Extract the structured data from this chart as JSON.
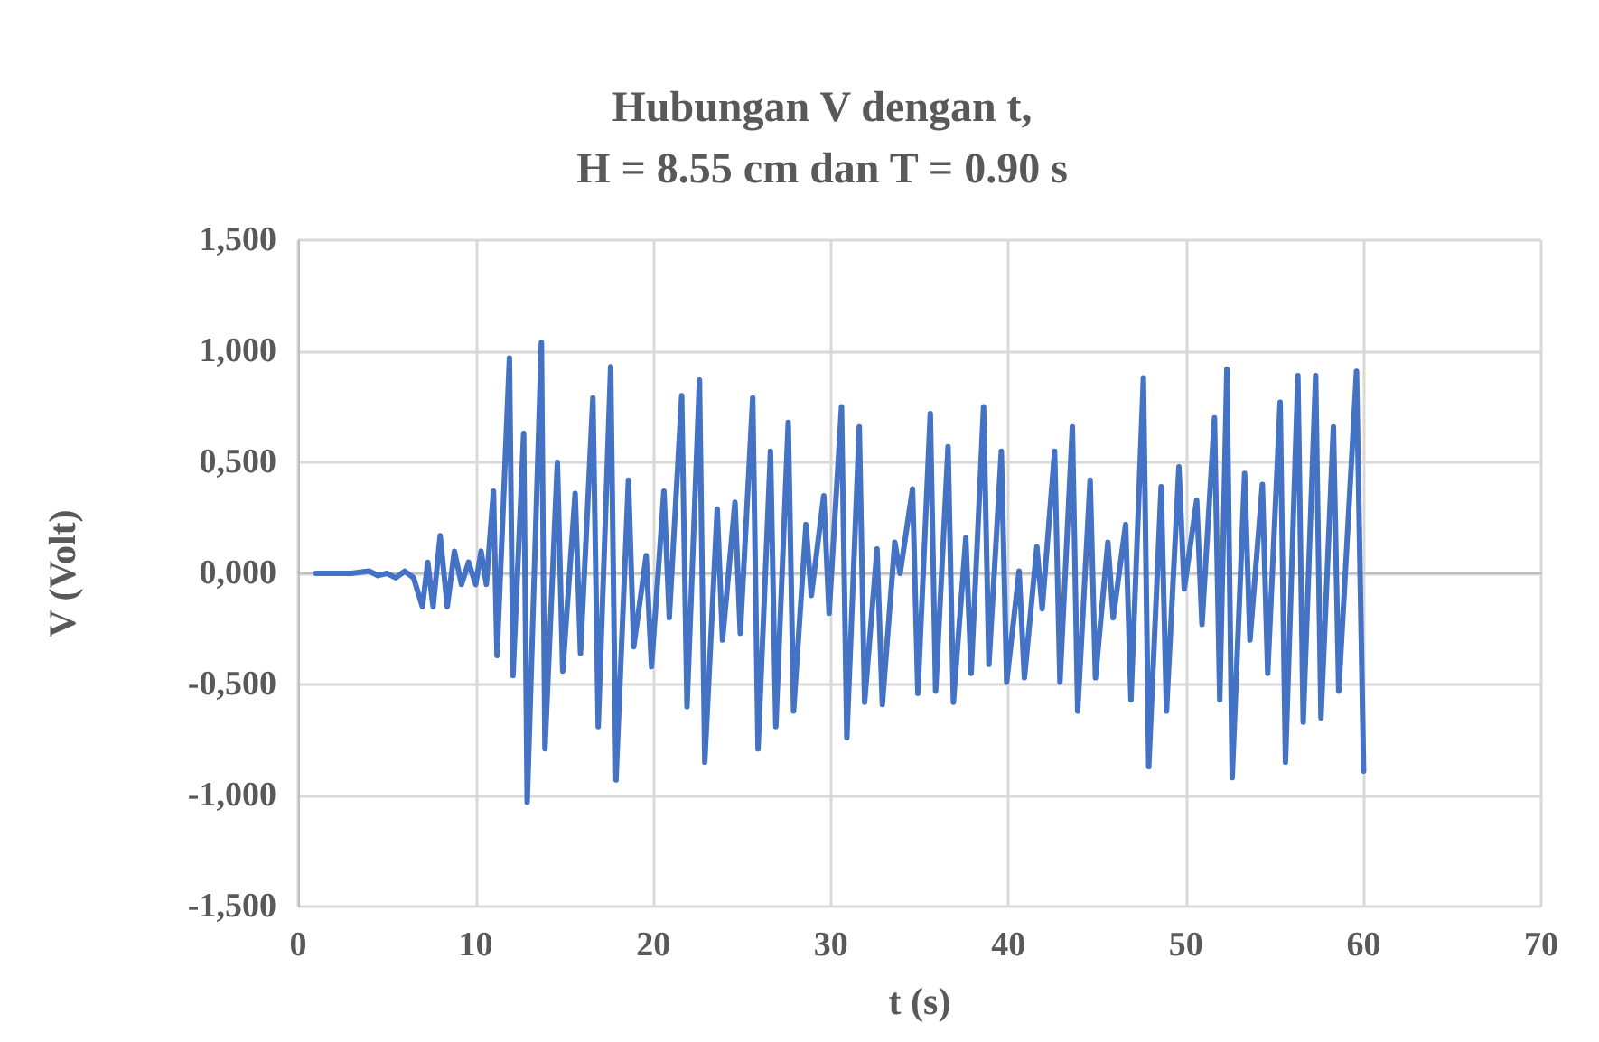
{
  "chart_data": {
    "type": "line",
    "title": "Hubungan V dengan t,\nH = 8.55 cm dan T = 0.90 s",
    "xlabel": "t (s)",
    "ylabel": "V (Volt)",
    "xlim": [
      0,
      70
    ],
    "xticks": [
      0,
      10,
      20,
      30,
      40,
      50,
      60,
      70
    ],
    "ylim": [
      -1.5,
      1.5
    ],
    "yticks": [
      {
        "value": -1.5,
        "label": "-1,500"
      },
      {
        "value": -1,
        "label": "-1,000"
      },
      {
        "value": -0.5,
        "label": "-0,500"
      },
      {
        "value": 0,
        "label": "0,000"
      },
      {
        "value": 0.5,
        "label": "0,500"
      },
      {
        "value": 1,
        "label": "1,000"
      },
      {
        "value": 1.5,
        "label": "1,500"
      }
    ],
    "grid": true,
    "marker": "none",
    "line_style": "solid",
    "series": [
      {
        "color": "#4472c4",
        "x": [
          1,
          2,
          3,
          4,
          4.5,
          5,
          5.5,
          6,
          6.5,
          7,
          7.3,
          7.6,
          8,
          8.4,
          8.8,
          9.2,
          9.6,
          10,
          10.3,
          10.6,
          11,
          11.2,
          11.9,
          12.1,
          12.7,
          12.9,
          13.7,
          13.9,
          14.6,
          14.9,
          15.6,
          15.9,
          16.6,
          16.9,
          17.6,
          17.9,
          18.6,
          18.9,
          19.6,
          19.9,
          20.6,
          20.9,
          21.6,
          21.9,
          22.6,
          22.9,
          23.6,
          23.9,
          24.6,
          24.9,
          25.6,
          25.9,
          26.6,
          26.9,
          27.6,
          27.9,
          28.6,
          28.9,
          29.6,
          29.9,
          30.6,
          30.9,
          31.6,
          31.9,
          32.6,
          32.9,
          33.6,
          33.9,
          34.6,
          34.9,
          35.6,
          35.9,
          36.6,
          36.9,
          37.6,
          37.9,
          38.6,
          38.9,
          39.6,
          39.9,
          40.6,
          40.9,
          41.6,
          41.9,
          42.6,
          42.9,
          43.6,
          43.9,
          44.6,
          44.9,
          45.6,
          45.9,
          46.6,
          46.9,
          47.6,
          47.9,
          48.6,
          48.9,
          49.6,
          49.9,
          50.6,
          50.9,
          51.6,
          51.9,
          52.3,
          52.6,
          53.3,
          53.6,
          54.3,
          54.6,
          55.3,
          55.6,
          56.3,
          56.6,
          57.3,
          57.6,
          58.3,
          58.6,
          59.6,
          60
        ],
        "values": [
          0,
          0,
          0,
          0.01,
          -0.01,
          0,
          -0.02,
          0.01,
          -0.02,
          -0.15,
          0.05,
          -0.15,
          0.17,
          -0.15,
          0.1,
          -0.05,
          0.05,
          -0.05,
          0.1,
          -0.05,
          0.37,
          -0.37,
          0.97,
          -0.46,
          0.63,
          -1.03,
          1.04,
          -0.79,
          0.5,
          -0.44,
          0.36,
          -0.36,
          0.79,
          -0.69,
          0.93,
          -0.93,
          0.42,
          -0.33,
          0.08,
          -0.42,
          0.37,
          -0.2,
          0.8,
          -0.6,
          0.87,
          -0.85,
          0.29,
          -0.3,
          0.32,
          -0.27,
          0.79,
          -0.79,
          0.55,
          -0.69,
          0.68,
          -0.62,
          0.22,
          -0.1,
          0.35,
          -0.18,
          0.75,
          -0.74,
          0.66,
          -0.58,
          0.11,
          -0.59,
          0.14,
          0,
          0.38,
          -0.54,
          0.72,
          -0.53,
          0.57,
          -0.58,
          0.16,
          -0.45,
          0.75,
          -0.41,
          0.55,
          -0.49,
          0.01,
          -0.47,
          0.12,
          -0.16,
          0.55,
          -0.49,
          0.66,
          -0.62,
          0.42,
          -0.47,
          0.14,
          -0.2,
          0.22,
          -0.57,
          0.88,
          -0.87,
          0.39,
          -0.62,
          0.48,
          -0.07,
          0.33,
          -0.23,
          0.7,
          -0.57,
          0.92,
          -0.92,
          0.45,
          -0.3,
          0.4,
          -0.45,
          0.77,
          -0.85,
          0.89,
          -0.67,
          0.89,
          -0.65,
          0.66,
          -0.53,
          0.91,
          -0.89
        ]
      }
    ]
  }
}
